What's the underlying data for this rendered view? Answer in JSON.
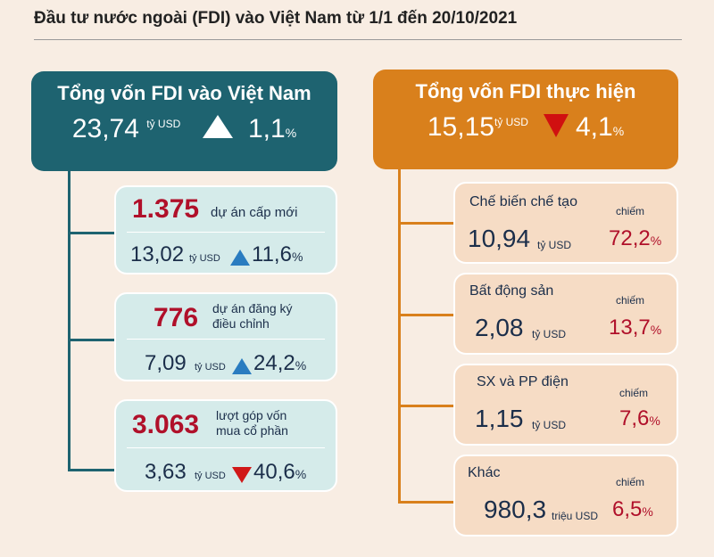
{
  "title": "Đầu tư nước ngoài (FDI) vào Việt Nam từ 1/1 đến 20/10/2021",
  "left": {
    "title": "Tổng vốn FDI vào Việt Nam",
    "value": "23,74",
    "unit": "tỷ USD",
    "change": "1,1",
    "pct": "%",
    "direction": "up",
    "items": [
      {
        "count": "1.375",
        "label": "dự án cấp mới",
        "label2": "",
        "value": "13,02",
        "unit": "tỷ USD",
        "change": "11,6",
        "pct": "%",
        "direction": "up"
      },
      {
        "count": "776",
        "label": "dự án đăng ký",
        "label2": "điều chỉnh",
        "value": "7,09",
        "unit": "tỷ USD",
        "change": "24,2",
        "pct": "%",
        "direction": "up"
      },
      {
        "count": "3.063",
        "label": "lượt góp vốn",
        "label2": "mua cổ phần",
        "value": "3,63",
        "unit": "tỷ USD",
        "change": "40,6",
        "pct": "%",
        "direction": "down"
      }
    ]
  },
  "right": {
    "title": "Tổng vốn FDI thực hiện",
    "value": "15,15",
    "unit": "tỷ USD",
    "change": "4,1",
    "pct": "%",
    "direction": "down",
    "share_label": "chiếm",
    "items": [
      {
        "sector": "Chế biến chế tạo",
        "value": "10,94",
        "unit": "tỷ USD",
        "share": "72,2",
        "pct": "%"
      },
      {
        "sector": "Bất động sản",
        "value": "2,08",
        "unit": "tỷ USD",
        "share": "13,7",
        "pct": "%"
      },
      {
        "sector": "SX và PP điện",
        "value": "1,15",
        "unit": "tỷ USD",
        "share": "7,6",
        "pct": "%"
      },
      {
        "sector": "Khác",
        "value": "980,3",
        "unit": "triệu USD",
        "share": "6,5",
        "pct": "%"
      }
    ]
  },
  "colors": {
    "teal": "#1e6370",
    "orange": "#d9801c",
    "red": "#b0102a"
  }
}
